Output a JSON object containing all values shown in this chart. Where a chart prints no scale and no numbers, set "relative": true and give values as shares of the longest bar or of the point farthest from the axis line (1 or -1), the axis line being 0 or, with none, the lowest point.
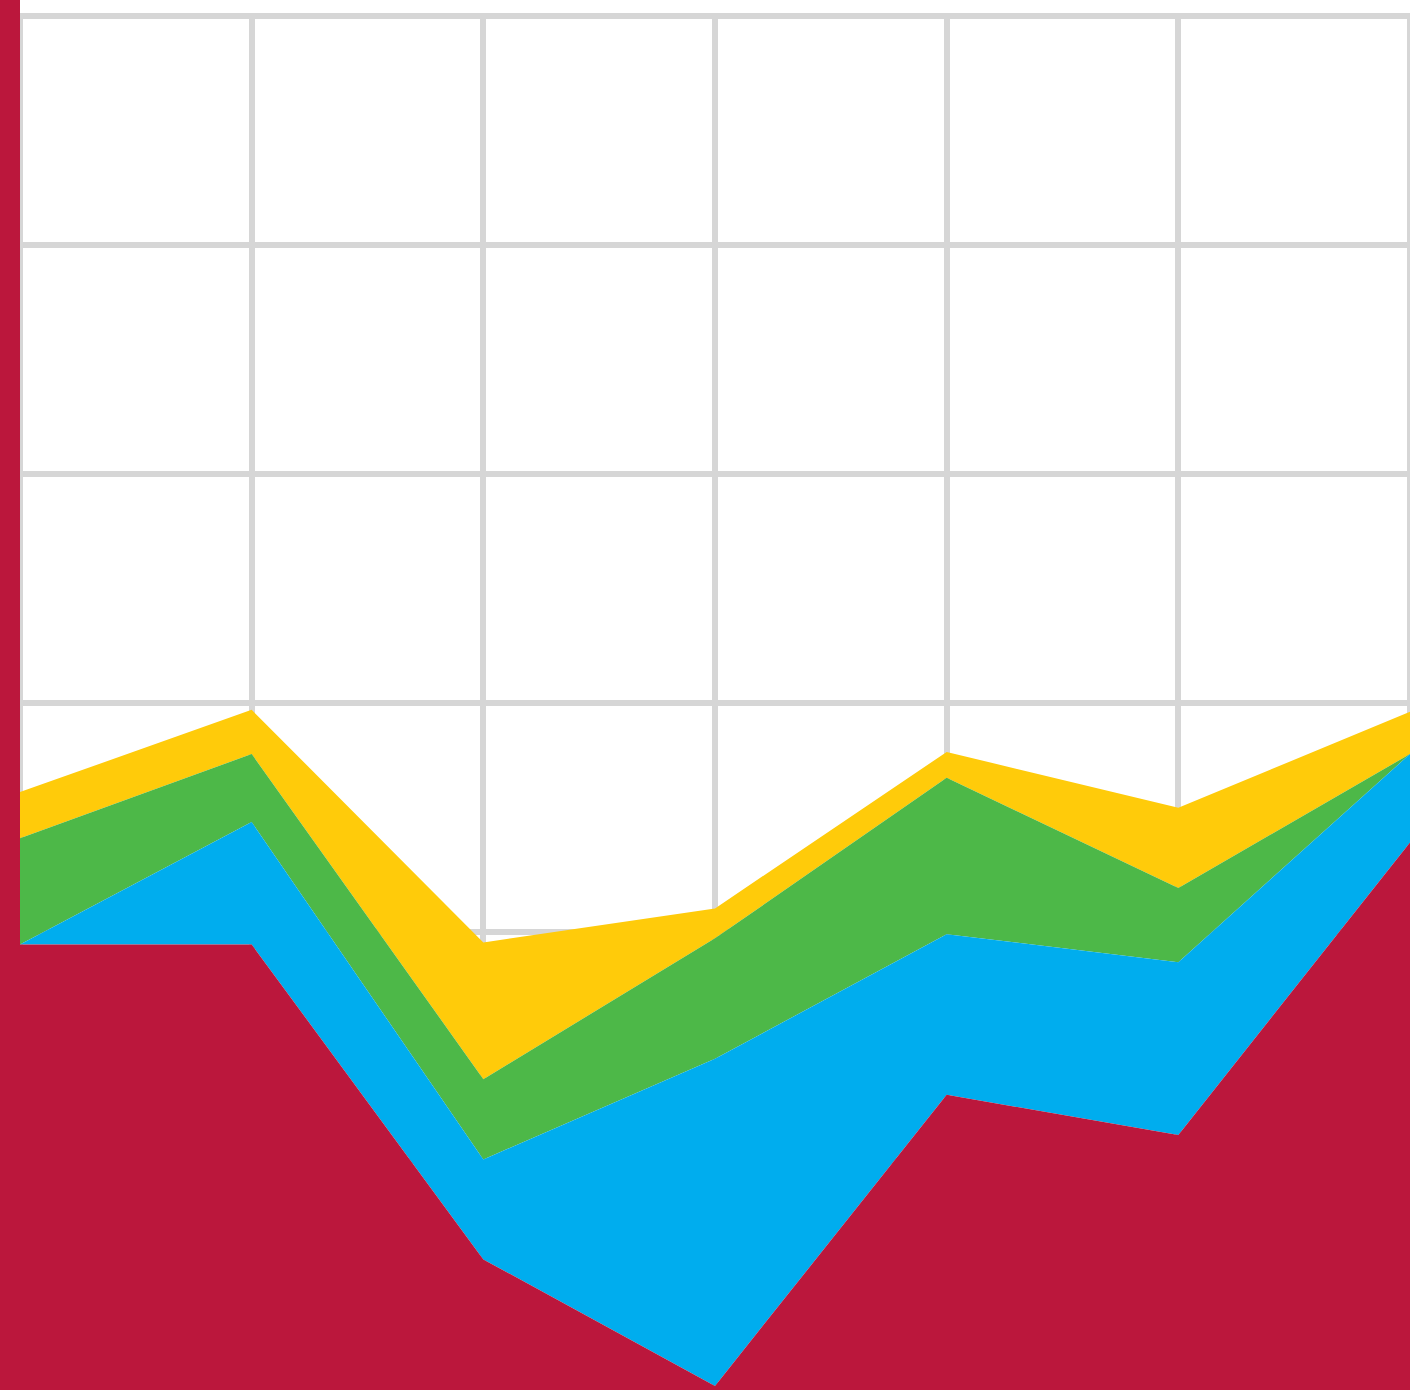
{
  "chart_data": {
    "type": "area",
    "stacked": true,
    "relative": true,
    "grid": true,
    "legend": false,
    "categories": [
      null,
      null,
      null,
      null,
      null,
      null,
      null
    ],
    "series": [
      {
        "color": "#bb173c",
        "values": [
          0.655,
          0.655,
          0.192,
          0.006,
          0.434,
          0.375,
          0.805
        ]
      },
      {
        "color": "#00adee",
        "values": [
          0,
          0.18,
          0.147,
          0.481,
          0.236,
          0.254,
          0.13
        ]
      },
      {
        "color": "#4db848",
        "values": [
          0.156,
          0.1,
          0.118,
          0.177,
          0.23,
          0.109,
          0
        ]
      },
      {
        "color": "#ffcb0a",
        "values": [
          0.068,
          0.065,
          0.201,
          0.044,
          0.038,
          0.118,
          0.062
        ]
      }
    ]
  }
}
